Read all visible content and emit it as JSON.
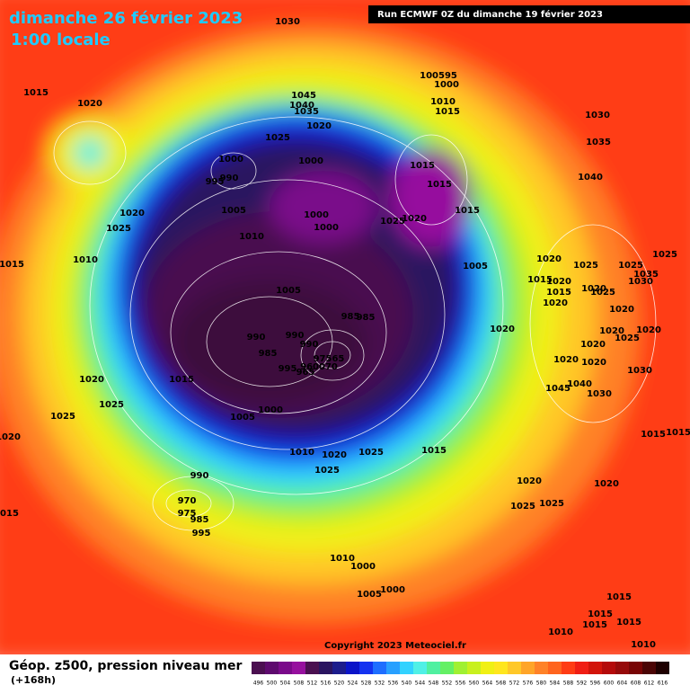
{
  "header": {
    "title": "dimanche 26 février 2023",
    "time": "1:00 locale",
    "run": "Run ECMWF 0Z du dimanche 19 février 2023"
  },
  "map": {
    "copyright": "Copyright 2023 Meteociel.fr",
    "isobars": [
      "1030",
      "1015",
      "1020",
      "1045",
      "1040",
      "1035",
      "100595",
      "1000",
      "1010",
      "1015",
      "1030",
      "1020",
      "1025",
      "1035",
      "1000",
      "1000",
      "1015",
      "1015",
      "995",
      "990",
      "1040",
      "1005",
      "1020",
      "1015",
      "1000",
      "1025",
      "1020",
      "1025",
      "1000",
      "1010",
      "1010",
      "1015",
      "1020",
      "1005",
      "1025",
      "1025",
      "1025",
      "1015",
      "1020",
      "1035",
      "1030",
      "1005",
      "1015",
      "1020",
      "1025",
      "1020",
      "985",
      "985",
      "1020",
      "1020",
      "990",
      "990",
      "1020",
      "1025",
      "1020",
      "990",
      "1020",
      "985",
      "97565",
      "1020",
      "1020",
      "1030",
      "995",
      "960070",
      "965",
      "1015",
      "1020",
      "1045",
      "1040",
      "1030",
      "1025",
      "1000",
      "1005",
      "1025",
      "1015",
      "1015",
      "1020",
      "1010",
      "1025",
      "1015",
      "1020",
      "1025",
      "990",
      "1020",
      "1020",
      "970",
      "1025",
      "1025",
      "1015",
      "975",
      "985",
      "995",
      "1010",
      "1000",
      "1005",
      "1000",
      "1015",
      "1015",
      "1015",
      "1015",
      "1010",
      "1010"
    ]
  },
  "footer": {
    "label": "Géop. z500, pression niveau mer",
    "lead": "(+168h)",
    "legend": [
      {
        "value": "496",
        "color": "#4b0f50"
      },
      {
        "value": "500",
        "color": "#5e0a6e"
      },
      {
        "value": "504",
        "color": "#7a0a8a"
      },
      {
        "value": "508",
        "color": "#96109e"
      },
      {
        "value": "512",
        "color": "#4a1050"
      },
      {
        "value": "516",
        "color": "#2a1460"
      },
      {
        "value": "520",
        "color": "#1c1c8c"
      },
      {
        "value": "524",
        "color": "#0a14c8"
      },
      {
        "value": "528",
        "color": "#1432f0"
      },
      {
        "value": "532",
        "color": "#1e6eff"
      },
      {
        "value": "536",
        "color": "#28a0ff"
      },
      {
        "value": "540",
        "color": "#32d2ff"
      },
      {
        "value": "544",
        "color": "#50f0e6"
      },
      {
        "value": "548",
        "color": "#50f0a0"
      },
      {
        "value": "552",
        "color": "#64f064"
      },
      {
        "value": "556",
        "color": "#a0f032"
      },
      {
        "value": "560",
        "color": "#c8f01e"
      },
      {
        "value": "564",
        "color": "#f0f014"
      },
      {
        "value": "568",
        "color": "#ffe61e"
      },
      {
        "value": "572",
        "color": "#ffc828"
      },
      {
        "value": "576",
        "color": "#ffa528"
      },
      {
        "value": "580",
        "color": "#ff8228"
      },
      {
        "value": "584",
        "color": "#ff641e"
      },
      {
        "value": "588",
        "color": "#ff3c14"
      },
      {
        "value": "592",
        "color": "#f01e14"
      },
      {
        "value": "596",
        "color": "#d2140a"
      },
      {
        "value": "600",
        "color": "#b40a0a"
      },
      {
        "value": "604",
        "color": "#960a0a"
      },
      {
        "value": "608",
        "color": "#780505"
      },
      {
        "value": "612",
        "color": "#4b0505"
      },
      {
        "value": "616",
        "color": "#1e0000"
      }
    ]
  }
}
